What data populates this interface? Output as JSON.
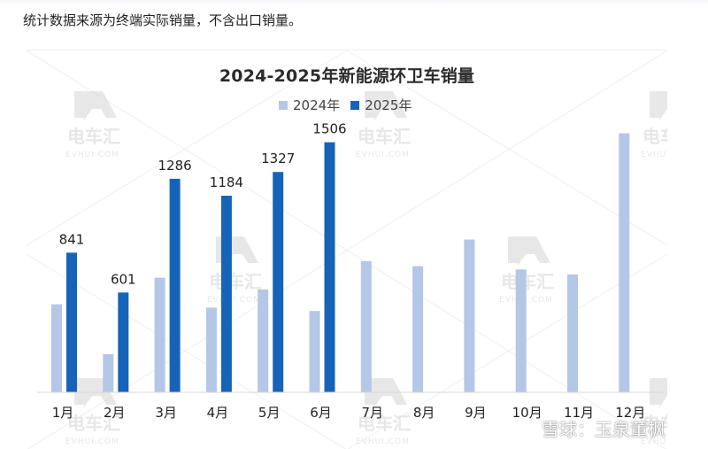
{
  "intro": {
    "text": "统计数据来源为终端实际销量，不含出口销量。"
  },
  "chart_data": {
    "type": "bar",
    "title": "2024-2025年新能源环卫车销量",
    "categories": [
      "1月",
      "2月",
      "3月",
      "4月",
      "5月",
      "6月",
      "7月",
      "8月",
      "9月",
      "10月",
      "11月",
      "12月"
    ],
    "series": [
      {
        "name": "2024年",
        "values": [
          530,
          230,
          690,
          510,
          620,
          490,
          790,
          760,
          920,
          740,
          710,
          1560
        ],
        "color": "#b4c7e7"
      },
      {
        "name": "2025年",
        "values": [
          841,
          601,
          1286,
          1184,
          1327,
          1506,
          null,
          null,
          null,
          null,
          null,
          null
        ],
        "color": "#1664b8"
      }
    ],
    "data_labels": {
      "2025年": [
        "841",
        "601",
        "1286",
        "1184",
        "1327",
        "1506"
      ]
    },
    "ylim": [
      0,
      1600
    ],
    "grid": false,
    "legend_position": "top"
  },
  "watermark": {
    "brand": "电车汇",
    "site": "EVHUI.COM"
  },
  "credit": {
    "text": "雪球：玉泉董枫"
  }
}
